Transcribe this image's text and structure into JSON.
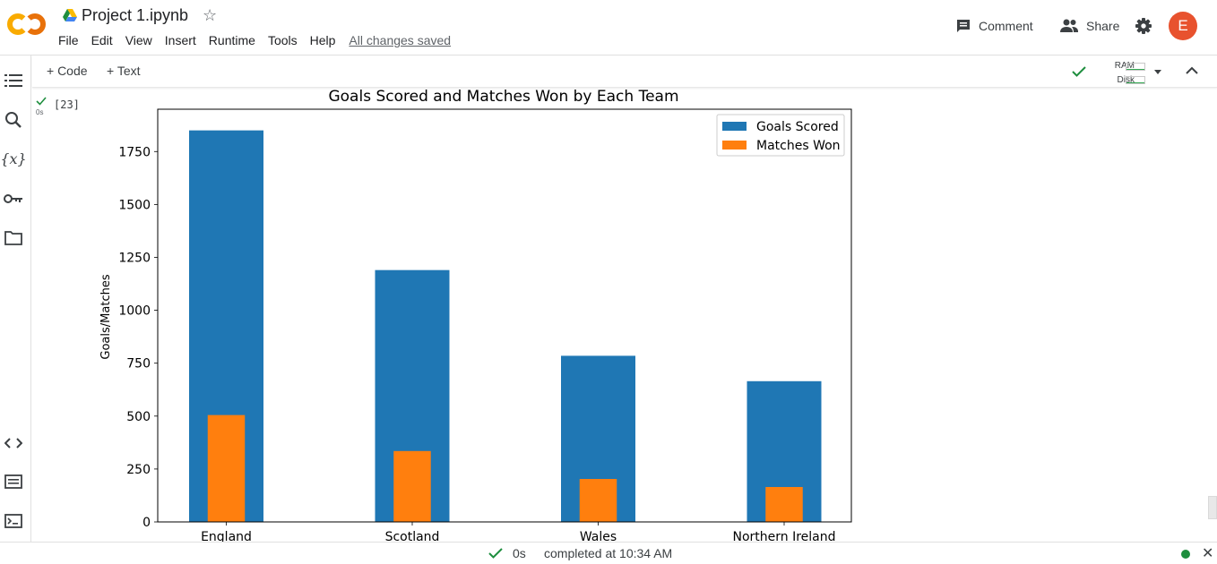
{
  "app": {
    "title": "Project 1.ipynb",
    "menu": [
      "File",
      "Edit",
      "View",
      "Insert",
      "Runtime",
      "Tools",
      "Help"
    ],
    "save_status": "All changes saved",
    "comment_label": "Comment",
    "share_label": "Share",
    "avatar_initial": "E",
    "brand_colors": {
      "logo_orange": "#f9ab00",
      "logo_dark": "#e8710a",
      "avatar": "#e8522e"
    }
  },
  "toolbar": {
    "add_code": "+ Code",
    "add_text": "+ Text",
    "ram_label": "RAM",
    "disk_label": "Disk"
  },
  "rail_icons": [
    "toc-icon",
    "search-icon",
    "variables-icon",
    "key-icon",
    "folder-icon",
    "code-snippets-icon",
    "command-palette-icon",
    "terminal-icon"
  ],
  "rail": {
    "variables_glyph": "{x}"
  },
  "cell": {
    "exec_count": "[23]",
    "exec_time": "0s"
  },
  "chart_data": {
    "type": "bar",
    "title": "Goals Scored and Matches Won by Each Team",
    "xlabel": "",
    "ylabel": "Goals/Matches",
    "categories": [
      "England",
      "Scotland",
      "Wales",
      "Northern Ireland"
    ],
    "series": [
      {
        "name": "Goals Scored",
        "color": "#1f77b4",
        "values": [
          1850,
          1190,
          785,
          665
        ]
      },
      {
        "name": "Matches Won",
        "color": "#ff7f0e",
        "values": [
          505,
          335,
          203,
          165
        ]
      }
    ],
    "ylim": [
      0,
      1950
    ],
    "yticks": [
      0,
      250,
      500,
      750,
      1000,
      1250,
      1500,
      1750
    ],
    "grid": false,
    "legend_position": "top-right"
  },
  "statusbar": {
    "elapsed": "0s",
    "completed": "completed at 10:34 AM"
  }
}
